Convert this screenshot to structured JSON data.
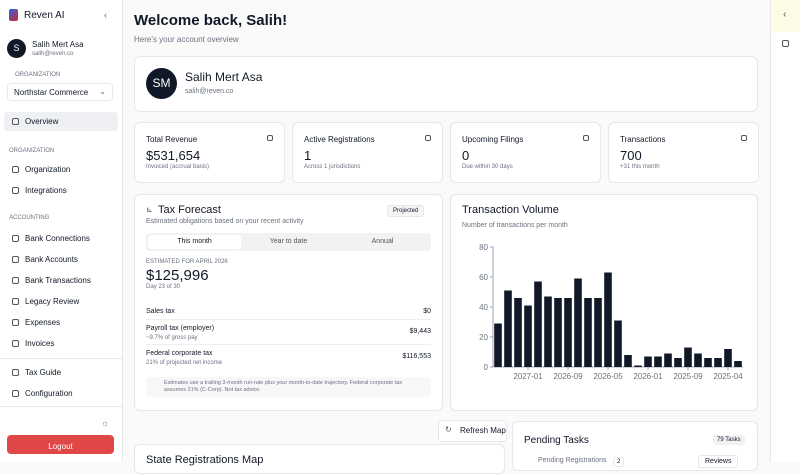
{
  "sidebar": {
    "brand": "Reven AI",
    "user": {
      "avatar": "S",
      "name": "Salih Mert Asa",
      "email": "salih@reven.co"
    },
    "org_label": "ORGANIZATION",
    "org": "Northstar Commerce",
    "overview": "Overview",
    "sections": [
      {
        "title": "ORGANIZATION",
        "items": [
          "Organization",
          "Integrations"
        ]
      },
      {
        "title": "ACCOUNTING",
        "items": [
          "Bank Connections",
          "Bank Accounts",
          "Bank Transactions",
          "Legacy Review",
          "Expenses",
          "Invoices"
        ]
      },
      {
        "items": [
          "Tax Guide",
          "Configuration"
        ]
      }
    ],
    "logout": "Logout"
  },
  "header": {
    "title": "Welcome back, Salih!",
    "subtitle": "Here's your account overview"
  },
  "profile": {
    "avatar": "SM",
    "name": "Salih Mert Asa",
    "email": "salih@reven.co"
  },
  "stats": [
    {
      "label": "Total Revenue",
      "value": "$531,654",
      "note": "Invoiced (accrual basis)"
    },
    {
      "label": "Active Registrations",
      "value": "1",
      "note": "Across 1 jurisdictions"
    },
    {
      "label": "Upcoming Filings",
      "value": "0",
      "note": "Due within 30 days"
    },
    {
      "label": "Transactions",
      "value": "700",
      "note": "+31 this month"
    }
  ],
  "tax_forecast": {
    "title": "Tax Forecast",
    "subtitle": "Estimated obligations based on your recent activity",
    "badge": "Projected",
    "tabs": [
      "This month",
      "Year to date",
      "Annual"
    ],
    "estimate_label": "ESTIMATED FOR APRIL 2026",
    "amount": "$125,996",
    "day": "Day 23 of 30",
    "rows": [
      {
        "label": "Sales tax",
        "value": "$0"
      },
      {
        "label": "Payroll tax (employer)",
        "note": "~9.7% of gross pay",
        "value": "$9,443"
      },
      {
        "label": "Federal corporate tax",
        "note": "21% of projected net income",
        "value": "$116,553"
      }
    ],
    "note": "Estimates use a trailing 3-month run-rate plus your month-to-date trajectory. Federal corporate tax assumes 21% (C-Corp). Not tax advice."
  },
  "chart_data": {
    "type": "bar",
    "title": "Transaction Volume",
    "subtitle": "Number of transactions per month",
    "color": "#111827",
    "categories": [
      null,
      null,
      null,
      "2027-01",
      null,
      null,
      null,
      "2026-09",
      null,
      null,
      null,
      "2026-05",
      null,
      null,
      null,
      "2026-01",
      null,
      null,
      null,
      "2025-09",
      null,
      null,
      null,
      "2025-04",
      null
    ],
    "values": [
      29,
      51,
      46,
      41,
      57,
      47,
      46,
      46,
      59,
      46,
      46,
      63,
      31,
      8,
      1,
      7,
      7,
      9,
      6,
      13,
      9,
      6,
      6,
      12,
      4
    ],
    "ylim": [
      0,
      80
    ],
    "yticks": [
      0,
      20,
      40,
      60,
      80
    ]
  },
  "map": {
    "refresh": "Refresh Map",
    "title": "State Registrations Map"
  },
  "tasks": {
    "title": "Pending Tasks",
    "badge": "79 Tasks",
    "item": "Pending Registrations",
    "count": "2",
    "action": "Reviews"
  }
}
